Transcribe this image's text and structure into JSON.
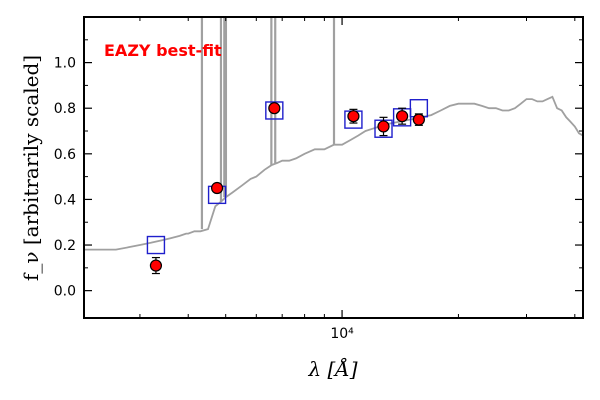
{
  "chart_data": {
    "type": "scatter",
    "annotation": "EAZY best-fit",
    "xlabel": "λ [Å]",
    "ylabel": "f_ν [arbitrarily scaled]",
    "x_scale": "log",
    "xlim": [
      2150,
      42000
    ],
    "ylim": [
      -0.12,
      1.2
    ],
    "x_ticks": [
      {
        "value": 10000,
        "label": "10⁴"
      }
    ],
    "y_ticks": [
      {
        "value": 0.0,
        "label": "0.0"
      },
      {
        "value": 0.2,
        "label": "0.2"
      },
      {
        "value": 0.4,
        "label": "0.4"
      },
      {
        "value": 0.6,
        "label": "0.6"
      },
      {
        "value": 0.8,
        "label": "0.8"
      },
      {
        "value": 1.0,
        "label": "1.0"
      }
    ],
    "grid": false,
    "colors": {
      "template": "#a0a0a0",
      "model": "#1f1fcc",
      "observed": "#ff0000",
      "annotation": "#ff0000",
      "axis": "#000000"
    },
    "series": [
      {
        "kind": "template-spectrum",
        "x": [
          2150,
          2400,
          2600,
          2800,
          3000,
          3200,
          3400,
          3600,
          3800,
          3950,
          4000,
          4150,
          4300,
          4500,
          4700,
          4861,
          5007,
          5200,
          5500,
          5800,
          6000,
          6300,
          6563,
          6800,
          7000,
          7300,
          7600,
          8000,
          8500,
          9000,
          9531,
          10000,
          10500,
          11000,
          11500,
          12000,
          12500,
          13000,
          14000,
          15000,
          16000,
          17000,
          18000,
          19000,
          20000,
          21000,
          22000,
          23000,
          24000,
          25000,
          26000,
          27000,
          28000,
          29000,
          30000,
          31000,
          32000,
          33000,
          34000,
          35000,
          36000,
          37000,
          38000,
          39000,
          40000,
          41000,
          42000
        ],
        "y": [
          0.18,
          0.18,
          0.18,
          0.19,
          0.2,
          0.21,
          0.22,
          0.23,
          0.24,
          0.25,
          0.25,
          0.26,
          0.26,
          0.27,
          0.37,
          0.39,
          0.41,
          0.43,
          0.46,
          0.49,
          0.5,
          0.53,
          0.55,
          0.56,
          0.57,
          0.57,
          0.58,
          0.6,
          0.62,
          0.62,
          0.64,
          0.64,
          0.66,
          0.68,
          0.7,
          0.71,
          0.72,
          0.73,
          0.74,
          0.75,
          0.76,
          0.77,
          0.79,
          0.81,
          0.82,
          0.82,
          0.82,
          0.81,
          0.8,
          0.8,
          0.79,
          0.79,
          0.8,
          0.82,
          0.84,
          0.84,
          0.83,
          0.83,
          0.84,
          0.85,
          0.8,
          0.79,
          0.76,
          0.74,
          0.72,
          0.69,
          0.68
        ]
      },
      {
        "kind": "emission-lines",
        "x": [
          4340,
          4861,
          4959,
          5007,
          6563,
          6716,
          9531
        ],
        "peak": [
          1.2,
          1.2,
          1.2,
          1.2,
          1.2,
          1.2,
          1.2
        ]
      },
      {
        "kind": "model-photometry",
        "x": [
          3300,
          4750,
          6680,
          10700,
          12800,
          14300,
          15800
        ],
        "y": [
          0.2,
          0.42,
          0.79,
          0.75,
          0.71,
          0.76,
          0.8
        ]
      },
      {
        "kind": "observed-photometry",
        "x": [
          3300,
          4750,
          6680,
          10700,
          12800,
          14300,
          15800
        ],
        "y": [
          0.11,
          0.45,
          0.8,
          0.765,
          0.72,
          0.765,
          0.75
        ],
        "err": [
          0.035,
          0.015,
          0.015,
          0.03,
          0.04,
          0.035,
          0.025
        ]
      }
    ]
  }
}
